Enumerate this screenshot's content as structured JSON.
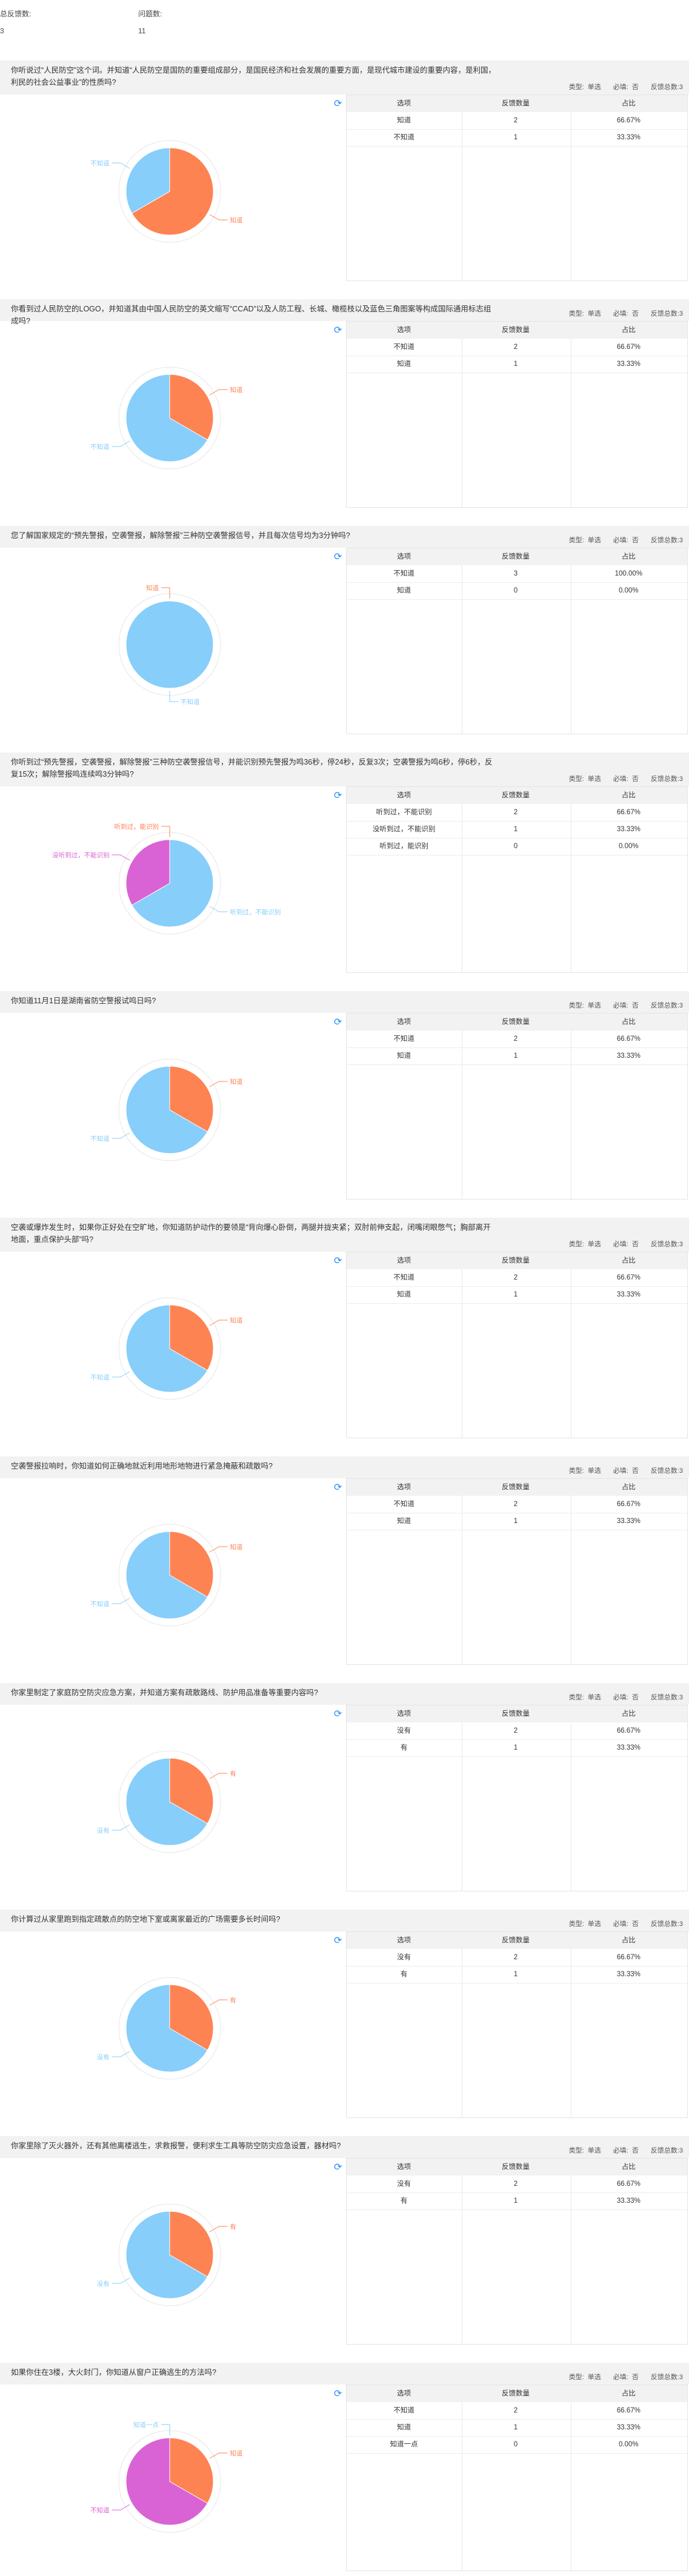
{
  "summary": {
    "total_label": "总反馈数:",
    "total_value": "3",
    "count_label": "问题数:",
    "count_value": "11"
  },
  "labels": {
    "type": "类型:",
    "single": "单选",
    "required": "必填:",
    "no": "否",
    "total_prefix": "反馈总数:",
    "option": "选项",
    "count": "反馈数量",
    "ratio": "占比"
  },
  "colors": {
    "orange": "#fe8353",
    "blue": "#87cefa",
    "violet": "#d963d5",
    "refresh": "#1e90ff"
  },
  "refresh_icon": "refresh-icon",
  "questions": [
    {
      "title": "你听说过“人民防空”这个词。并知道“人民防空是国防的重要组成部分，是国民经济和社会发展的重要方面，是现代城市建设的重要内容，是利国，利民的社会公益事业”的性质吗?",
      "total": "3",
      "rows": [
        {
          "option": "知道",
          "count": "2",
          "ratio": "66.67%"
        },
        {
          "option": "不知道",
          "count": "1",
          "ratio": "33.33%"
        }
      ],
      "chart_data": {
        "type": "pie",
        "start": "orange",
        "slices": [
          {
            "label": "知道",
            "value": 2,
            "color": "#fe8353"
          },
          {
            "label": "不知道",
            "value": 1,
            "color": "#87cefa"
          }
        ]
      }
    },
    {
      "title": "你看到过人民防空的LOGO，并知道其由中国人民防空的英文缩写“CCAD”以及人防工程、长城、橄榄枝以及蓝色三角图案等构成国际通用标志组成吗?",
      "total": "3",
      "rows": [
        {
          "option": "不知道",
          "count": "2",
          "ratio": "66.67%"
        },
        {
          "option": "知道",
          "count": "1",
          "ratio": "33.33%"
        }
      ],
      "chart_data": {
        "type": "pie",
        "start": "orange",
        "slices": [
          {
            "label": "知道",
            "value": 1,
            "color": "#fe8353"
          },
          {
            "label": "不知道",
            "value": 2,
            "color": "#87cefa"
          }
        ]
      }
    },
    {
      "title": "您了解国家规定的“预先警报，空袭警报，解除警报”三种防空袭警报信号，并且每次信号均为3分钟吗?",
      "total": "3",
      "rows": [
        {
          "option": "不知道",
          "count": "3",
          "ratio": "100.00%"
        },
        {
          "option": "知道",
          "count": "0",
          "ratio": "0.00%"
        }
      ],
      "chart_data": {
        "type": "pie",
        "start": "blue",
        "slices": [
          {
            "label": "不知道",
            "value": 3,
            "color": "#87cefa"
          },
          {
            "label": "知道",
            "value": 0,
            "color": "#fe8353"
          }
        ]
      }
    },
    {
      "title": "你听到过“预先警报，空袭警报，解除警报”三种防空袭警报信号，并能识别预先警报为鸣36秒，停24秒，反复3次；空袭警报为鸣6秒，停6秒，反复15次；解除警报鸣连续鸣3分钟吗?",
      "total": "3",
      "rows": [
        {
          "option": "听到过，不能识别",
          "count": "2",
          "ratio": "66.67%"
        },
        {
          "option": "没听到过，不能识别",
          "count": "1",
          "ratio": "33.33%"
        },
        {
          "option": "听到过，能识别",
          "count": "0",
          "ratio": "0.00%"
        }
      ],
      "chart_data": {
        "type": "pie",
        "start": "blue",
        "slices": [
          {
            "label": "听到过，不能识别",
            "value": 2,
            "color": "#87cefa"
          },
          {
            "label": "没听到过，不能识别",
            "value": 1,
            "color": "#d963d5"
          },
          {
            "label": "听到过，能识别",
            "value": 0,
            "color": "#fe8353"
          }
        ]
      }
    },
    {
      "title": "你知道11月1日是湖南省防空警报试鸣日吗?",
      "total": "3",
      "rows": [
        {
          "option": "不知道",
          "count": "2",
          "ratio": "66.67%"
        },
        {
          "option": "知道",
          "count": "1",
          "ratio": "33.33%"
        }
      ],
      "chart_data": {
        "type": "pie",
        "start": "orange",
        "slices": [
          {
            "label": "知道",
            "value": 1,
            "color": "#fe8353"
          },
          {
            "label": "不知道",
            "value": 2,
            "color": "#87cefa"
          }
        ]
      }
    },
    {
      "title": "空袭或爆炸发生时，如果你正好处在空旷地，你知道防护动作的要领是“背向爆心卧倒，两腿并拢夹紧；双肘前伸支起，闭嘴闭眼憋气；胸部离开地面，重点保护头部”吗?",
      "total": "3",
      "rows": [
        {
          "option": "不知道",
          "count": "2",
          "ratio": "66.67%"
        },
        {
          "option": "知道",
          "count": "1",
          "ratio": "33.33%"
        }
      ],
      "chart_data": {
        "type": "pie",
        "start": "orange",
        "slices": [
          {
            "label": "知道",
            "value": 1,
            "color": "#fe8353"
          },
          {
            "label": "不知道",
            "value": 2,
            "color": "#87cefa"
          }
        ]
      }
    },
    {
      "title": "空袭警报拉响时，你知道如何正确地就近利用地形地物进行紧急掩蔽和疏散吗?",
      "total": "3",
      "rows": [
        {
          "option": "不知道",
          "count": "2",
          "ratio": "66.67%"
        },
        {
          "option": "知道",
          "count": "1",
          "ratio": "33.33%"
        }
      ],
      "chart_data": {
        "type": "pie",
        "start": "orange",
        "slices": [
          {
            "label": "知道",
            "value": 1,
            "color": "#fe8353"
          },
          {
            "label": "不知道",
            "value": 2,
            "color": "#87cefa"
          }
        ]
      }
    },
    {
      "title": "你家里制定了家庭防空防灾应急方案，并知道方案有疏散路线、防护用品准备等重要内容吗?",
      "total": "3",
      "rows": [
        {
          "option": "没有",
          "count": "2",
          "ratio": "66.67%"
        },
        {
          "option": "有",
          "count": "1",
          "ratio": "33.33%"
        }
      ],
      "chart_data": {
        "type": "pie",
        "start": "orange",
        "slices": [
          {
            "label": "有",
            "value": 1,
            "color": "#fe8353"
          },
          {
            "label": "没有",
            "value": 2,
            "color": "#87cefa"
          }
        ]
      }
    },
    {
      "title": "你计算过从家里跑到指定疏散点的防空地下室或离家最近的广场需要多长时间吗?",
      "total": "3",
      "rows": [
        {
          "option": "没有",
          "count": "2",
          "ratio": "66.67%"
        },
        {
          "option": "有",
          "count": "1",
          "ratio": "33.33%"
        }
      ],
      "chart_data": {
        "type": "pie",
        "start": "orange",
        "slices": [
          {
            "label": "有",
            "value": 1,
            "color": "#fe8353"
          },
          {
            "label": "没有",
            "value": 2,
            "color": "#87cefa"
          }
        ]
      }
    },
    {
      "title": "你家里除了灭火器外，还有其他离楼逃生，求救报警，便利求生工具等防空防灾应急设置，器材吗?",
      "total": "3",
      "rows": [
        {
          "option": "没有",
          "count": "2",
          "ratio": "66.67%"
        },
        {
          "option": "有",
          "count": "1",
          "ratio": "33.33%"
        }
      ],
      "chart_data": {
        "type": "pie",
        "start": "orange",
        "slices": [
          {
            "label": "有",
            "value": 1,
            "color": "#fe8353"
          },
          {
            "label": "没有",
            "value": 2,
            "color": "#87cefa"
          }
        ]
      }
    },
    {
      "title": "如果你住在3楼，大火封门，你知道从窗户正确逃生的方法吗?",
      "total": "3",
      "rows": [
        {
          "option": "不知道",
          "count": "2",
          "ratio": "66.67%"
        },
        {
          "option": "知道",
          "count": "1",
          "ratio": "33.33%"
        },
        {
          "option": "知道一点",
          "count": "0",
          "ratio": "0.00%"
        }
      ],
      "chart_data": {
        "type": "pie",
        "start": "orange",
        "slices": [
          {
            "label": "知道",
            "value": 1,
            "color": "#fe8353"
          },
          {
            "label": "不知道",
            "value": 2,
            "color": "#d963d5"
          },
          {
            "label": "知道一点",
            "value": 0,
            "color": "#87cefa"
          }
        ]
      }
    }
  ]
}
